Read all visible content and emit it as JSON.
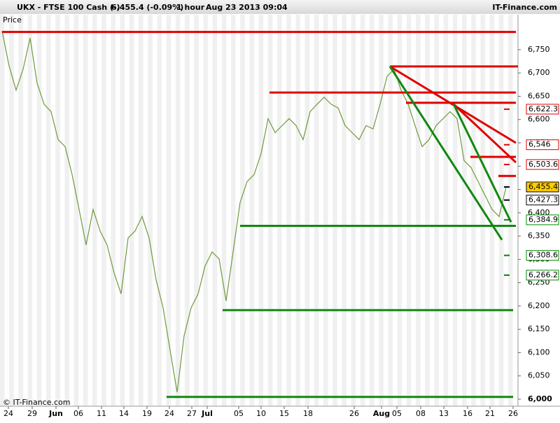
{
  "header": {
    "instrument": "UKX - FTSE 100 Cash (-)",
    "quote": "6,455.4 (-0.09%)",
    "period": "1 hour",
    "timestamp": "Aug 23 2013 09:04",
    "brand": "IT-Finance.com"
  },
  "footer": "© IT-Finance.com",
  "chart_data": {
    "type": "line",
    "y_label": "Price",
    "x": [
      0,
      1,
      2,
      3,
      4,
      5,
      6,
      7,
      8,
      9,
      10,
      11,
      12,
      13,
      14,
      15,
      16,
      17,
      18,
      19,
      20,
      21,
      22,
      23,
      24,
      25,
      26,
      27,
      28,
      29,
      30,
      31,
      32,
      33,
      34,
      35,
      36,
      37,
      38,
      39,
      40,
      41,
      42,
      43,
      44,
      45,
      46,
      47,
      48,
      49,
      50,
      51,
      52,
      53,
      54,
      55,
      56,
      57,
      58,
      59,
      60,
      61,
      62,
      63,
      64,
      65,
      66,
      67,
      68,
      69,
      70,
      71,
      72
    ],
    "series": [
      {
        "name": "Price",
        "color": "#6f9a3c",
        "values": [
          6790,
          6715,
          6663,
          6708,
          6775,
          6678,
          6633,
          6617,
          6557,
          6542,
          6482,
          6407,
          6331,
          6407,
          6361,
          6331,
          6271,
          6226,
          6346,
          6361,
          6392,
          6346,
          6256,
          6196,
          6105,
          6015,
          6136,
          6196,
          6226,
          6286,
          6316,
          6301,
          6211,
          6316,
          6422,
          6467,
          6482,
          6527,
          6602,
          6572,
          6587,
          6602,
          6587,
          6557,
          6617,
          6633,
          6648,
          6633,
          6625,
          6587,
          6572,
          6557,
          6587,
          6580,
          6633,
          6693,
          6708,
          6663,
          6633,
          6587,
          6542,
          6557,
          6587,
          6602,
          6617,
          6602,
          6512,
          6497,
          6467,
          6437,
          6407,
          6392,
          6455
        ]
      }
    ],
    "xlim": [
      -0.3,
      73.7
    ],
    "xticks": [
      {
        "value": 0.9,
        "label": "24"
      },
      {
        "value": 4.3,
        "label": "29"
      },
      {
        "value": 7.7,
        "label": "Jun"
      },
      {
        "value": 10.9,
        "label": "06"
      },
      {
        "value": 14.2,
        "label": "11"
      },
      {
        "value": 17.4,
        "label": "14"
      },
      {
        "value": 20.7,
        "label": "19"
      },
      {
        "value": 23.9,
        "label": "24"
      },
      {
        "value": 27.1,
        "label": "27"
      },
      {
        "value": 29.3,
        "label": "Jul"
      },
      {
        "value": 33.8,
        "label": "05"
      },
      {
        "value": 37,
        "label": "10"
      },
      {
        "value": 40.3,
        "label": "15"
      },
      {
        "value": 43.7,
        "label": "18"
      },
      {
        "value": 50.3,
        "label": "26"
      },
      {
        "value": 54.2,
        "label": "Aug"
      },
      {
        "value": 56.4,
        "label": "05"
      },
      {
        "value": 59.8,
        "label": "08"
      },
      {
        "value": 63.1,
        "label": "13"
      },
      {
        "value": 66.5,
        "label": "16"
      },
      {
        "value": 69.7,
        "label": "21"
      },
      {
        "value": 73,
        "label": "26"
      }
    ],
    "ylim": [
      5985,
      6825
    ],
    "yticks": [
      {
        "value": 6000,
        "label": "6,000"
      },
      {
        "value": 6050,
        "label": "6,050"
      },
      {
        "value": 6100,
        "label": "6,100"
      },
      {
        "value": 6150,
        "label": "6,150"
      },
      {
        "value": 6200,
        "label": "6,200"
      },
      {
        "value": 6250,
        "label": "6,250"
      },
      {
        "value": 6300,
        "label": "6,300"
      },
      {
        "value": 6350,
        "label": "6,350"
      },
      {
        "value": 6400,
        "label": "6,400"
      },
      {
        "value": 6450,
        "label": "6,450"
      },
      {
        "value": 6500,
        "label": "6,500"
      },
      {
        "value": 6550,
        "label": "6,550"
      },
      {
        "value": 6600,
        "label": "6,600"
      },
      {
        "value": 6650,
        "label": "6,650"
      },
      {
        "value": 6700,
        "label": "6,700"
      },
      {
        "value": 6750,
        "label": "6,750"
      }
    ],
    "levels": [
      {
        "value": 6622.3,
        "label": "6,622.3",
        "color": "#dd0000"
      },
      {
        "value": 6546,
        "label": "6,546",
        "color": "#dd0000"
      },
      {
        "value": 6503.6,
        "label": "6,503.6",
        "color": "#dd0000"
      },
      {
        "value": 6455.4,
        "label": "6,455.4",
        "color": "#000000"
      },
      {
        "value": 6427.3,
        "label": "6,427.3",
        "color": "#000000"
      },
      {
        "value": 6384.9,
        "label": "6,384.9",
        "color": "#008800"
      },
      {
        "value": 6308.6,
        "label": "6,308.6",
        "color": "#008800"
      },
      {
        "value": 6266.2,
        "label": "6,266.2",
        "color": "#008800"
      }
    ],
    "lines": [
      {
        "color": "#e00000",
        "x": [
          0,
          73.4
        ],
        "y": [
          6788,
          6788
        ]
      },
      {
        "color": "#e00000",
        "x": [
          55.4,
          73.7
        ],
        "y": [
          6714,
          6714
        ]
      },
      {
        "color": "#e00000",
        "x": [
          38.2,
          73.4
        ],
        "y": [
          6658,
          6658
        ]
      },
      {
        "color": "#e00000",
        "x": [
          57.7,
          73.4
        ],
        "y": [
          6636,
          6636
        ]
      },
      {
        "color": "#e00000",
        "x": [
          55.4,
          73.4
        ],
        "y": [
          6714,
          6550
        ]
      },
      {
        "color": "#e00000",
        "x": [
          64.5,
          73.4
        ],
        "y": [
          6633,
          6508
        ]
      },
      {
        "color": "#e00000",
        "x": [
          66.9,
          73.4
        ],
        "y": [
          6520,
          6520
        ]
      },
      {
        "color": "#e00000",
        "x": [
          70.9,
          73.4
        ],
        "y": [
          6479,
          6479
        ]
      },
      {
        "color": "#118811",
        "x": [
          34,
          73.4
        ],
        "y": [
          6372,
          6372
        ]
      },
      {
        "color": "#118811",
        "x": [
          31.5,
          73
        ],
        "y": [
          6191,
          6191
        ]
      },
      {
        "color": "#118811",
        "x": [
          23.5,
          73
        ],
        "y": [
          6005,
          6005
        ]
      },
      {
        "color": "#118811",
        "x": [
          55.4,
          71.4
        ],
        "y": [
          6714,
          6342
        ]
      },
      {
        "color": "#118811",
        "x": [
          64.5,
          72.7
        ],
        "y": [
          6633,
          6380
        ]
      }
    ]
  }
}
